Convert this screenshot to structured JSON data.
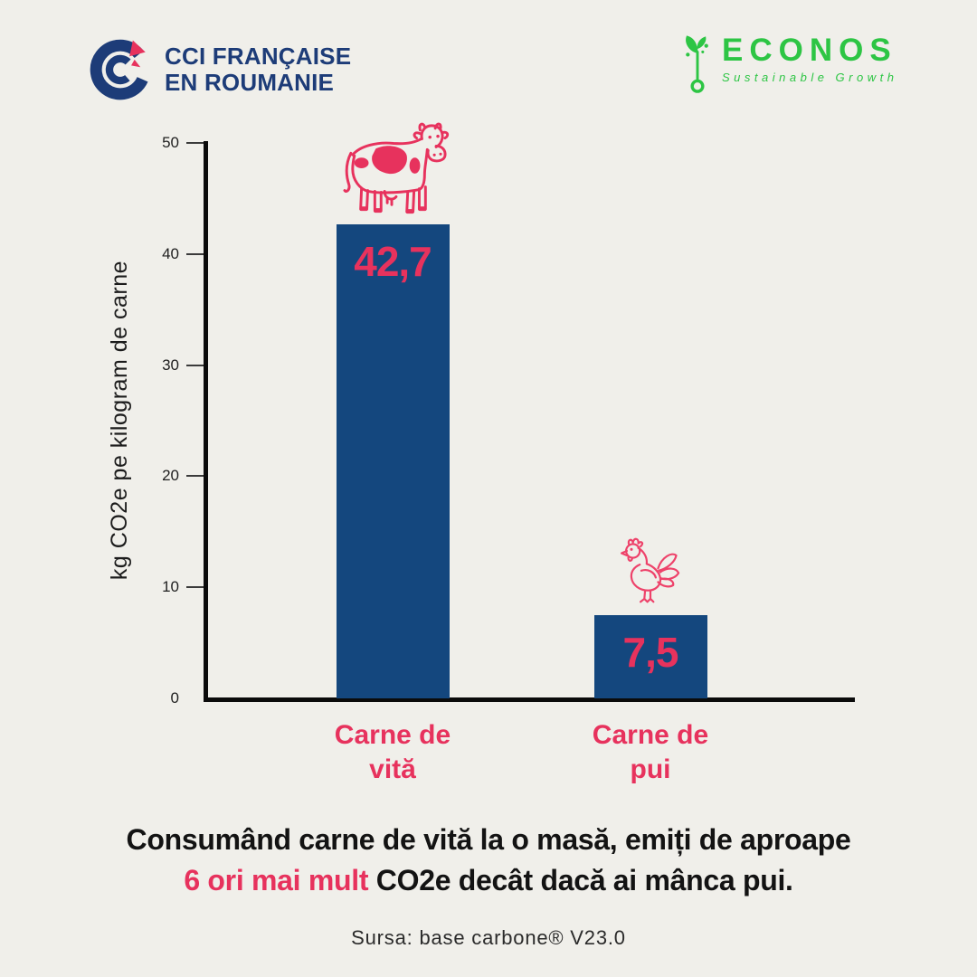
{
  "header": {
    "cci": {
      "line1": "CCI FRANÇAISE",
      "line2": "EN ROUMANIE"
    },
    "econos": {
      "name": "ECONOS",
      "tagline": "Sustainable Growth"
    }
  },
  "chart_data": {
    "type": "bar",
    "categories": [
      "Carne de vită",
      "Carne de pui"
    ],
    "values": [
      42.7,
      7.5
    ],
    "value_labels": [
      "42,7",
      "7,5"
    ],
    "ylabel": "kg CO2e pe kilogram de carne",
    "xlabel": "",
    "ylim": [
      0,
      50
    ],
    "yticks": [
      0,
      10,
      20,
      30,
      40,
      50
    ],
    "grid": false,
    "legend": false,
    "bar_color": "#14477E",
    "value_label_color": "#E7325D",
    "category_label_color": "#E7325D",
    "icons": [
      "cow-icon",
      "chicken-icon"
    ]
  },
  "caption": {
    "line1": "Consumând carne de vită la o masă, emiți de aproape",
    "highlight": "6 ori mai mult",
    "rest": " CO2e decât dacă ai mânca pui.",
    "highlight_color": "#E7325D"
  },
  "source": "Sursa: base carbone® V23.0",
  "colors": {
    "background": "#F0EFEA",
    "bar": "#14477E",
    "pink": "#E7325D",
    "green": "#2DC544",
    "cci_navy": "#1D3C78",
    "text": "#131313"
  }
}
